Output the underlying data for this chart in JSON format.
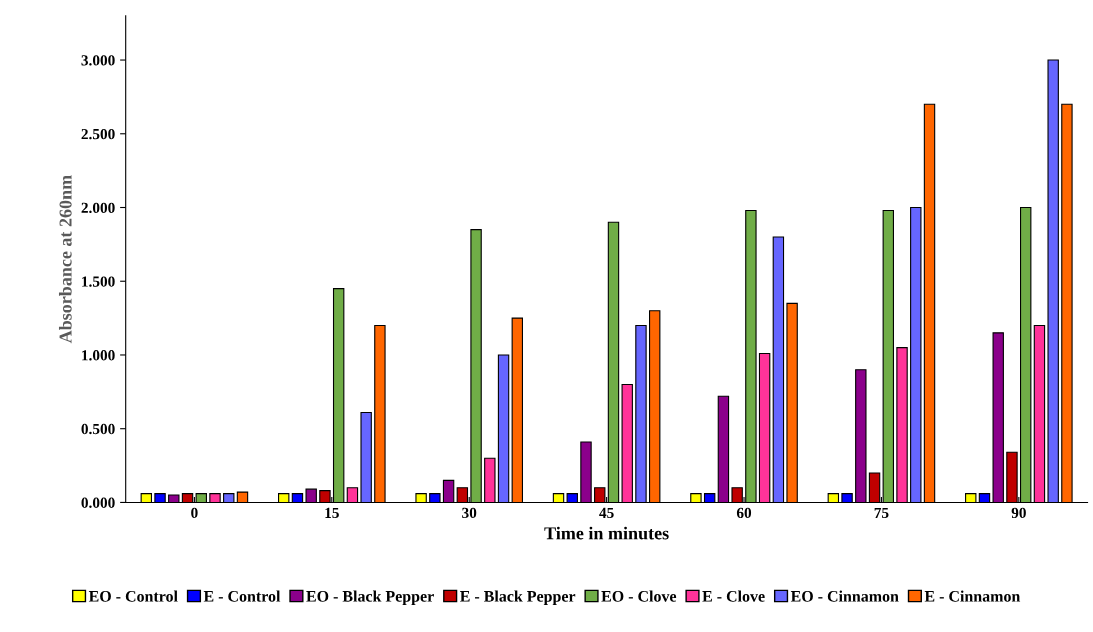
{
  "chart_data": {
    "type": "bar",
    "xlabel": "Time in minutes",
    "ylabel": "Absorbance at 260nm",
    "categories": [
      "0",
      "15",
      "30",
      "45",
      "60",
      "75",
      "90"
    ],
    "ylim": [
      0,
      3.3
    ],
    "yticks": [
      {
        "value": 0,
        "label": "0.000"
      },
      {
        "value": 0.5,
        "label": "0.500"
      },
      {
        "value": 1,
        "label": "1.000"
      },
      {
        "value": 1.5,
        "label": "1.500"
      },
      {
        "value": 2,
        "label": "2.000"
      },
      {
        "value": 2.5,
        "label": "2.500"
      },
      {
        "value": 3,
        "label": "3.000"
      }
    ],
    "grid": false,
    "legend": "bottom",
    "series": [
      {
        "name": "EO - Control",
        "color": "#ffff00",
        "values": [
          0.06,
          0.06,
          0.06,
          0.06,
          0.06,
          0.06,
          0.06
        ]
      },
      {
        "name": "E - Control",
        "color": "#0000ff",
        "values": [
          0.06,
          0.06,
          0.06,
          0.06,
          0.06,
          0.06,
          0.06
        ]
      },
      {
        "name": "EO - Black Pepper",
        "color": "#8b008b",
        "values": [
          0.05,
          0.09,
          0.15,
          0.41,
          0.72,
          0.9,
          1.15
        ]
      },
      {
        "name": "E - Black Pepper",
        "color": "#c00000",
        "values": [
          0.06,
          0.08,
          0.1,
          0.1,
          0.1,
          0.2,
          0.34
        ]
      },
      {
        "name": "EO - Clove",
        "color": "#70ad47",
        "values": [
          0.06,
          1.45,
          1.85,
          1.9,
          1.98,
          1.98,
          2.0
        ]
      },
      {
        "name": "E - Clove",
        "color": "#ff3399",
        "values": [
          0.06,
          0.1,
          0.3,
          0.8,
          1.01,
          1.05,
          1.2
        ]
      },
      {
        "name": "EO - Cinnamon",
        "color": "#6666ff",
        "values": [
          0.06,
          0.61,
          1.0,
          1.2,
          1.8,
          2.0,
          3.0
        ]
      },
      {
        "name": "E - Cinnamon",
        "color": "#ff6600",
        "values": [
          0.07,
          1.2,
          1.25,
          1.3,
          1.35,
          2.7,
          2.7
        ]
      }
    ]
  }
}
